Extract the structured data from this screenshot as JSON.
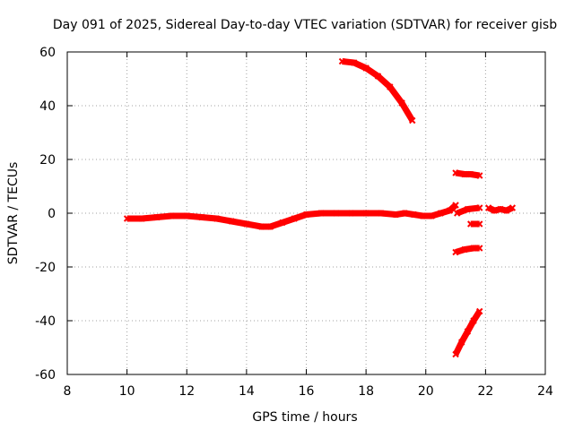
{
  "chart_data": {
    "type": "scatter",
    "title": "Day 091 of 2025, Sidereal Day-to-day VTEC variation (SDTVAR) for receiver gisb",
    "xlabel": "GPS time / hours",
    "ylabel": "SDTVAR / TECUs",
    "xlim": [
      8,
      24
    ],
    "ylim": [
      -60,
      60
    ],
    "xticks": [
      8,
      10,
      12,
      14,
      16,
      18,
      20,
      22,
      24
    ],
    "yticks": [
      -60,
      -40,
      -20,
      0,
      20,
      40,
      60
    ],
    "grid": true,
    "series_color": "#ff0000",
    "series": [
      {
        "name": "main trace",
        "x": [
          10.0,
          10.5,
          11.0,
          11.5,
          12.0,
          12.5,
          13.0,
          13.5,
          14.0,
          14.5,
          14.8,
          15.2,
          15.6,
          16.0,
          16.5,
          17.0,
          17.5,
          18.0,
          18.5,
          19.0,
          19.3,
          19.6,
          19.9,
          20.2,
          20.5,
          20.8,
          21.0
        ],
        "y": [
          -2,
          -2,
          -1.5,
          -1,
          -1,
          -1.5,
          -2,
          -3,
          -4,
          -5,
          -5,
          -3.5,
          -2,
          -0.5,
          0,
          0,
          0,
          0,
          0,
          -0.5,
          0,
          -0.5,
          -1,
          -1,
          0,
          1,
          3
        ]
      },
      {
        "name": "upper descending arc",
        "x": [
          17.2,
          17.6,
          18.0,
          18.4,
          18.8,
          19.2,
          19.55
        ],
        "y": [
          56.5,
          56,
          54,
          51,
          47,
          41,
          34.5
        ]
      },
      {
        "name": "upper segment 21-22h",
        "x": [
          21.0,
          21.3,
          21.5,
          21.8
        ],
        "y": [
          15,
          14.5,
          14.5,
          14
        ]
      },
      {
        "name": "middle segments 21-22h",
        "x": [
          21.05,
          21.4,
          21.8
        ],
        "y": [
          0,
          1.5,
          2
        ]
      },
      {
        "name": "small segment near -4",
        "x": [
          21.5,
          21.8
        ],
        "y": [
          -4,
          -4
        ]
      },
      {
        "name": "lower segment near -14",
        "x": [
          21.0,
          21.3,
          21.6,
          21.8
        ],
        "y": [
          -14.5,
          -13.5,
          -13,
          -13
        ]
      },
      {
        "name": "lower ascending arc",
        "x": [
          21.0,
          21.2,
          21.4,
          21.6,
          21.8
        ],
        "y": [
          -52.5,
          -48,
          -44,
          -40,
          -36.5
        ]
      },
      {
        "name": "late cluster",
        "x": [
          22.1,
          22.3,
          22.5,
          22.7,
          22.9
        ],
        "y": [
          2,
          1,
          1.5,
          1,
          2
        ]
      }
    ]
  }
}
